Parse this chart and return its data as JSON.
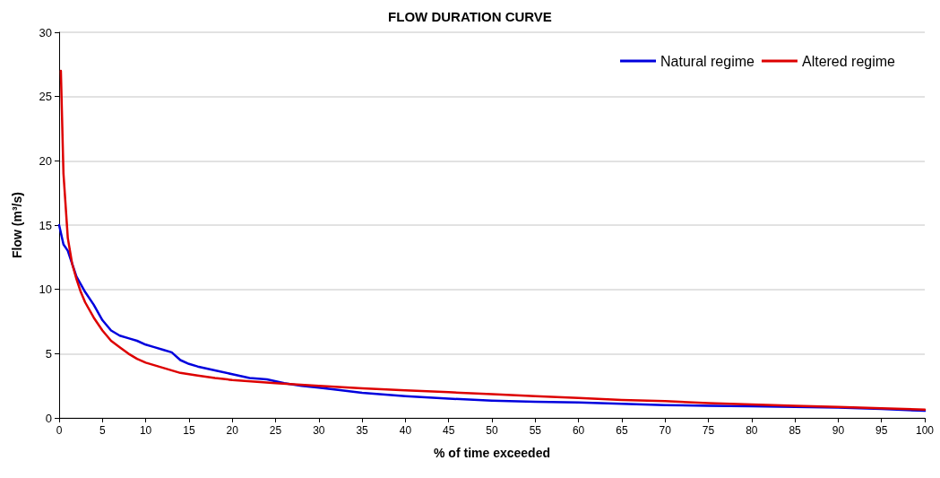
{
  "chart_data": {
    "type": "line",
    "title": "FLOW DURATION CURVE",
    "xlabel": "% of time exceeded",
    "ylabel": "Flow (m³/s)",
    "xlim": [
      0,
      100
    ],
    "xticks": [
      0,
      5,
      10,
      15,
      20,
      25,
      30,
      35,
      40,
      45,
      50,
      55,
      60,
      65,
      70,
      75,
      80,
      85,
      90,
      95,
      100
    ],
    "ylim": [
      0,
      30
    ],
    "yticks": [
      0,
      5,
      10,
      15,
      20,
      25,
      30
    ],
    "grid": "y",
    "legend": "top right",
    "marker": "none",
    "line_style": "solid",
    "series": [
      {
        "name": "Natural regime",
        "color": "#0000dd",
        "x": [
          0,
          0.5,
          1,
          1.5,
          2,
          3,
          4,
          5,
          6,
          7,
          8,
          9,
          10,
          11,
          12,
          13,
          14,
          15,
          16,
          18,
          20,
          22,
          24,
          26,
          28,
          30,
          32,
          35,
          40,
          45,
          50,
          55,
          60,
          65,
          70,
          75,
          80,
          85,
          90,
          95,
          100
        ],
        "values": [
          15,
          13.5,
          13,
          12,
          11,
          9.8,
          8.8,
          7.6,
          6.8,
          6.4,
          6.2,
          6,
          5.7,
          5.5,
          5.3,
          5.1,
          4.5,
          4.2,
          4,
          3.7,
          3.4,
          3.1,
          3,
          2.7,
          2.5,
          2.35,
          2.2,
          1.95,
          1.7,
          1.5,
          1.35,
          1.25,
          1.2,
          1.1,
          1,
          0.95,
          0.9,
          0.85,
          0.8,
          0.7,
          0.55
        ]
      },
      {
        "name": "Altered regime",
        "color": "#dd0000",
        "x": [
          0.2,
          0.5,
          1,
          1.5,
          2,
          2.5,
          3,
          4,
          5,
          6,
          7,
          8,
          9,
          10,
          12,
          14,
          16,
          18,
          20,
          25,
          30,
          35,
          40,
          45,
          50,
          55,
          60,
          65,
          70,
          75,
          80,
          85,
          90,
          95,
          100
        ],
        "values": [
          27,
          19,
          14,
          12,
          10.8,
          9.8,
          9,
          7.8,
          6.8,
          6,
          5.5,
          5,
          4.6,
          4.3,
          3.9,
          3.5,
          3.3,
          3.1,
          2.95,
          2.7,
          2.5,
          2.3,
          2.15,
          2,
          1.85,
          1.7,
          1.55,
          1.4,
          1.3,
          1.15,
          1.05,
          0.95,
          0.85,
          0.75,
          0.65
        ]
      }
    ]
  }
}
